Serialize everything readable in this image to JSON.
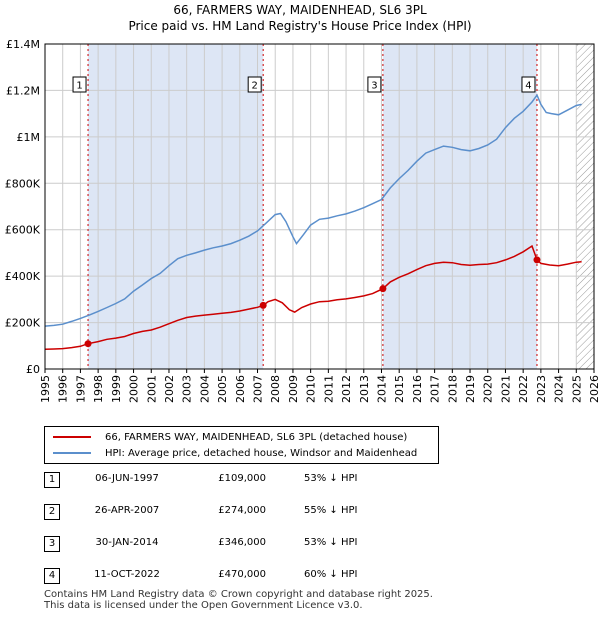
{
  "title_line1": "66, FARMERS WAY, MAIDENHEAD, SL6 3PL",
  "title_line2": "Price paid vs. HM Land Registry's House Price Index (HPI)",
  "colors": {
    "property": "#cc0000",
    "hpi": "#5b8fcc",
    "shade": "#dde6f5",
    "grid": "#cccccc"
  },
  "chart_data": {
    "type": "line",
    "xlim": [
      1995,
      2026
    ],
    "ylim": [
      0,
      1400000
    ],
    "y_ticks": [
      {
        "value": 0,
        "label": "£0"
      },
      {
        "value": 200000,
        "label": "£200K"
      },
      {
        "value": 400000,
        "label": "£400K"
      },
      {
        "value": 600000,
        "label": "£600K"
      },
      {
        "value": 800000,
        "label": "£800K"
      },
      {
        "value": 1000000,
        "label": "£1M"
      },
      {
        "value": 1200000,
        "label": "£1.2M"
      },
      {
        "value": 1400000,
        "label": "£1.4M"
      }
    ],
    "x_ticks": [
      "1995",
      "1996",
      "1997",
      "1998",
      "1999",
      "2000",
      "2001",
      "2002",
      "2003",
      "2004",
      "2005",
      "2006",
      "2007",
      "2008",
      "2009",
      "2010",
      "2011",
      "2012",
      "2013",
      "2014",
      "2015",
      "2016",
      "2017",
      "2018",
      "2019",
      "2020",
      "2021",
      "2022",
      "2023",
      "2024",
      "2025",
      "2026"
    ],
    "shaded_ranges": [
      [
        1997.43,
        2007.32
      ],
      [
        2014.08,
        2022.78
      ]
    ],
    "hatched_from": 2025.0,
    "series": [
      {
        "name": "66, FARMERS WAY, MAIDENHEAD, SL6 3PL (detached house)",
        "color": "#cc0000",
        "points": [
          [
            1995.0,
            85000
          ],
          [
            1995.5,
            86000
          ],
          [
            1996.0,
            88000
          ],
          [
            1996.5,
            92000
          ],
          [
            1997.0,
            98000
          ],
          [
            1997.43,
            109000
          ],
          [
            1998.0,
            118000
          ],
          [
            1998.5,
            128000
          ],
          [
            1999.0,
            133000
          ],
          [
            1999.5,
            140000
          ],
          [
            2000.0,
            153000
          ],
          [
            2000.5,
            162000
          ],
          [
            2001.0,
            168000
          ],
          [
            2001.5,
            180000
          ],
          [
            2002.0,
            195000
          ],
          [
            2002.5,
            210000
          ],
          [
            2003.0,
            222000
          ],
          [
            2003.5,
            228000
          ],
          [
            2004.0,
            232000
          ],
          [
            2004.5,
            236000
          ],
          [
            2005.0,
            240000
          ],
          [
            2005.5,
            244000
          ],
          [
            2006.0,
            250000
          ],
          [
            2006.5,
            258000
          ],
          [
            2007.0,
            266000
          ],
          [
            2007.32,
            274000
          ],
          [
            2007.6,
            290000
          ],
          [
            2008.0,
            300000
          ],
          [
            2008.4,
            285000
          ],
          [
            2008.8,
            255000
          ],
          [
            2009.1,
            245000
          ],
          [
            2009.5,
            265000
          ],
          [
            2010.0,
            280000
          ],
          [
            2010.5,
            290000
          ],
          [
            2011.0,
            292000
          ],
          [
            2011.5,
            298000
          ],
          [
            2012.0,
            302000
          ],
          [
            2012.5,
            308000
          ],
          [
            2013.0,
            315000
          ],
          [
            2013.5,
            325000
          ],
          [
            2014.08,
            346000
          ],
          [
            2014.5,
            375000
          ],
          [
            2015.0,
            395000
          ],
          [
            2015.5,
            410000
          ],
          [
            2016.0,
            428000
          ],
          [
            2016.5,
            445000
          ],
          [
            2017.0,
            455000
          ],
          [
            2017.5,
            460000
          ],
          [
            2018.0,
            458000
          ],
          [
            2018.5,
            450000
          ],
          [
            2019.0,
            447000
          ],
          [
            2019.5,
            450000
          ],
          [
            2020.0,
            452000
          ],
          [
            2020.5,
            458000
          ],
          [
            2021.0,
            470000
          ],
          [
            2021.5,
            485000
          ],
          [
            2022.0,
            505000
          ],
          [
            2022.5,
            530000
          ],
          [
            2022.78,
            470000
          ],
          [
            2023.0,
            455000
          ],
          [
            2023.5,
            448000
          ],
          [
            2024.0,
            445000
          ],
          [
            2024.5,
            452000
          ],
          [
            2025.0,
            460000
          ],
          [
            2025.3,
            462000
          ]
        ]
      },
      {
        "name": "HPI: Average price, detached house, Windsor and Maidenhead",
        "color": "#5b8fcc",
        "points": [
          [
            1995.0,
            185000
          ],
          [
            1995.5,
            188000
          ],
          [
            1996.0,
            193000
          ],
          [
            1996.5,
            205000
          ],
          [
            1997.0,
            218000
          ],
          [
            1997.5,
            232000
          ],
          [
            1998.0,
            248000
          ],
          [
            1998.5,
            265000
          ],
          [
            1999.0,
            282000
          ],
          [
            1999.5,
            302000
          ],
          [
            2000.0,
            335000
          ],
          [
            2000.5,
            362000
          ],
          [
            2001.0,
            390000
          ],
          [
            2001.5,
            412000
          ],
          [
            2002.0,
            445000
          ],
          [
            2002.5,
            475000
          ],
          [
            2003.0,
            490000
          ],
          [
            2003.5,
            500000
          ],
          [
            2004.0,
            512000
          ],
          [
            2004.5,
            522000
          ],
          [
            2005.0,
            530000
          ],
          [
            2005.5,
            540000
          ],
          [
            2006.0,
            555000
          ],
          [
            2006.5,
            572000
          ],
          [
            2007.0,
            595000
          ],
          [
            2007.5,
            630000
          ],
          [
            2008.0,
            665000
          ],
          [
            2008.3,
            670000
          ],
          [
            2008.6,
            635000
          ],
          [
            2009.0,
            570000
          ],
          [
            2009.2,
            540000
          ],
          [
            2009.6,
            580000
          ],
          [
            2010.0,
            620000
          ],
          [
            2010.5,
            645000
          ],
          [
            2011.0,
            650000
          ],
          [
            2011.5,
            660000
          ],
          [
            2012.0,
            668000
          ],
          [
            2012.5,
            680000
          ],
          [
            2013.0,
            695000
          ],
          [
            2013.5,
            712000
          ],
          [
            2014.0,
            730000
          ],
          [
            2014.5,
            780000
          ],
          [
            2015.0,
            820000
          ],
          [
            2015.5,
            855000
          ],
          [
            2016.0,
            895000
          ],
          [
            2016.5,
            930000
          ],
          [
            2017.0,
            945000
          ],
          [
            2017.5,
            960000
          ],
          [
            2018.0,
            955000
          ],
          [
            2018.5,
            945000
          ],
          [
            2019.0,
            940000
          ],
          [
            2019.5,
            950000
          ],
          [
            2020.0,
            965000
          ],
          [
            2020.5,
            990000
          ],
          [
            2021.0,
            1040000
          ],
          [
            2021.5,
            1080000
          ],
          [
            2022.0,
            1110000
          ],
          [
            2022.5,
            1150000
          ],
          [
            2022.78,
            1180000
          ],
          [
            2023.0,
            1140000
          ],
          [
            2023.3,
            1105000
          ],
          [
            2023.6,
            1100000
          ],
          [
            2024.0,
            1095000
          ],
          [
            2024.5,
            1115000
          ],
          [
            2025.0,
            1135000
          ],
          [
            2025.3,
            1140000
          ]
        ]
      }
    ],
    "sale_markers": [
      {
        "label": "1",
        "x": 1997.43,
        "y": 109000
      },
      {
        "label": "2",
        "x": 2007.32,
        "y": 274000
      },
      {
        "label": "3",
        "x": 2014.08,
        "y": 346000
      },
      {
        "label": "4",
        "x": 2022.78,
        "y": 470000
      }
    ]
  },
  "legend": {
    "property": "66, FARMERS WAY, MAIDENHEAD, SL6 3PL (detached house)",
    "hpi": "HPI: Average price, detached house, Windsor and Maidenhead"
  },
  "sales": [
    {
      "num": "1",
      "date": "06-JUN-1997",
      "price": "£109,000",
      "hpi": "53% ↓ HPI"
    },
    {
      "num": "2",
      "date": "26-APR-2007",
      "price": "£274,000",
      "hpi": "55% ↓ HPI"
    },
    {
      "num": "3",
      "date": "30-JAN-2014",
      "price": "£346,000",
      "hpi": "53% ↓ HPI"
    },
    {
      "num": "4",
      "date": "11-OCT-2022",
      "price": "£470,000",
      "hpi": "60% ↓ HPI"
    }
  ],
  "footer_line1": "Contains HM Land Registry data © Crown copyright and database right 2025.",
  "footer_line2": "This data is licensed under the Open Government Licence v3.0."
}
